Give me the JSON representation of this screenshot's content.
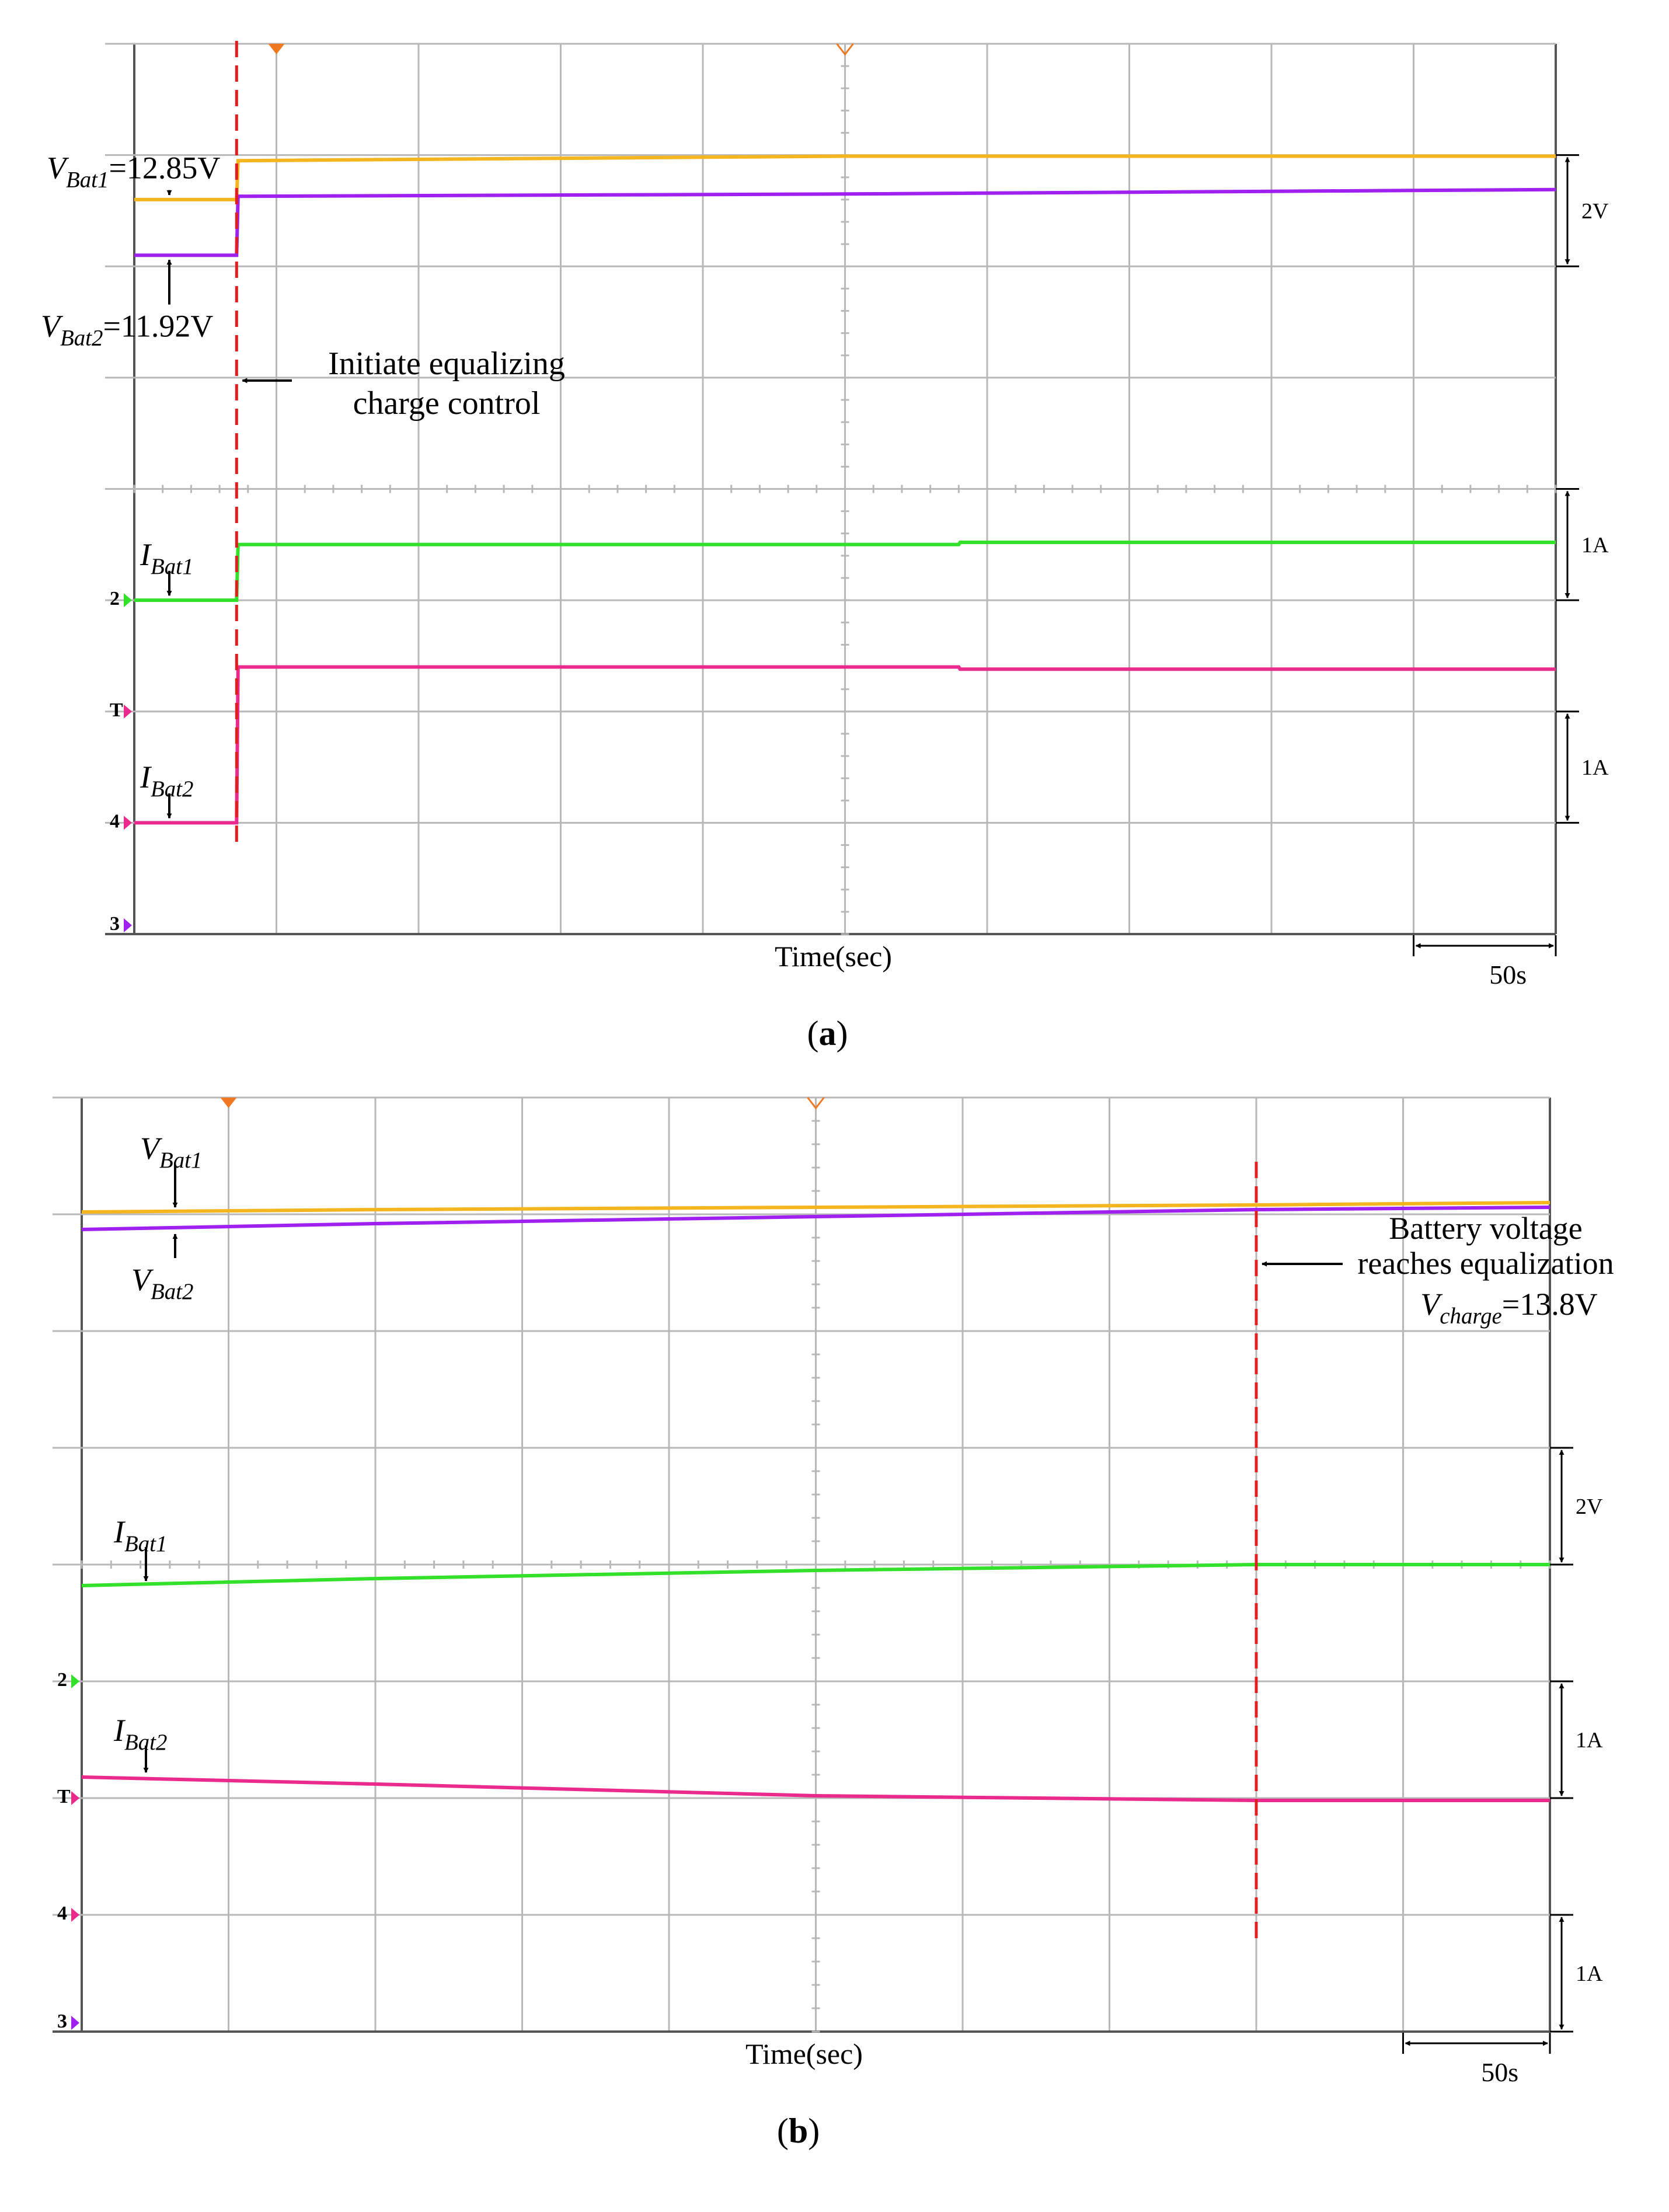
{
  "colors": {
    "vbat1": "#f5b51e",
    "vbat2": "#a020f0",
    "ibat1": "#33e02a",
    "ibat2": "#ea2a8c",
    "marker": "#e02020",
    "grid": "#b8b8b8",
    "trigger": "#f07820"
  },
  "chart_data": [
    {
      "panel_label": "a",
      "type": "line",
      "xlabel": "Time(sec)",
      "time_scale_label": "50s",
      "scale_labels": [
        "2V",
        "1A",
        "1A"
      ],
      "channel_markers": [
        "2",
        "T",
        "4",
        "3"
      ],
      "event_label_line1": "Initiate equalizing",
      "event_label_line2": "charge control",
      "labels": {
        "vbat1_sym": "V",
        "vbat1_sub": "Bat1",
        "vbat1_val": "=12.85V",
        "vbat2_sym": "V",
        "vbat2_sub": "Bat2",
        "vbat2_val": "=11.92V",
        "ibat1_sym": "I",
        "ibat1_sub": "Bat1",
        "ibat2_sym": "I",
        "ibat2_sub": "Bat2"
      },
      "x_divisions": 10,
      "y_divisions": 8,
      "event_time_div": 0.72,
      "series": [
        {
          "key": "vbat1",
          "x_div": [
            0,
            0.72,
            0.73,
            5,
            10
          ],
          "y_div": [
            6.6,
            6.6,
            6.95,
            6.99,
            6.99
          ]
        },
        {
          "key": "vbat2",
          "x_div": [
            0,
            0.72,
            0.73,
            5,
            10
          ],
          "y_div": [
            6.1,
            6.1,
            6.63,
            6.65,
            6.69
          ]
        },
        {
          "key": "ibat1",
          "x_div": [
            0,
            0.72,
            0.73,
            5.8,
            5.81,
            10
          ],
          "y_div": [
            3.0,
            3.0,
            3.5,
            3.5,
            3.52,
            3.52
          ]
        },
        {
          "key": "ibat2",
          "x_div": [
            0,
            0.72,
            0.73,
            5.8,
            5.81,
            10
          ],
          "y_div": [
            1.0,
            1.0,
            2.4,
            2.4,
            2.38,
            2.38
          ]
        }
      ]
    },
    {
      "panel_label": "b",
      "type": "line",
      "xlabel": "Time(sec)",
      "time_scale_label": "50s",
      "scale_labels": [
        "2V",
        "1A",
        "1A"
      ],
      "channel_markers": [
        "2",
        "T",
        "4",
        "3"
      ],
      "event_label_line1": "Battery voltage",
      "event_label_line2": "reaches equalization",
      "event_label_line3_sym": "V",
      "event_label_line3_sub": "charge",
      "event_label_line3_val": "=13.8V",
      "labels": {
        "vbat1_sym": "V",
        "vbat1_sub": "Bat1",
        "vbat2_sym": "V",
        "vbat2_sub": "Bat2",
        "ibat1_sym": "I",
        "ibat1_sub": "Bat1",
        "ibat2_sym": "I",
        "ibat2_sub": "Bat2"
      },
      "x_divisions": 10,
      "y_divisions": 8,
      "event_time_div": 8.0,
      "series": [
        {
          "key": "vbat1",
          "x_div": [
            0,
            2,
            5,
            8,
            10
          ],
          "y_div": [
            7.02,
            7.04,
            7.06,
            7.08,
            7.1
          ]
        },
        {
          "key": "vbat2",
          "x_div": [
            0,
            2,
            5,
            8,
            10
          ],
          "y_div": [
            6.87,
            6.92,
            6.98,
            7.04,
            7.06
          ]
        },
        {
          "key": "ibat1",
          "x_div": [
            0,
            2,
            5,
            8,
            10
          ],
          "y_div": [
            3.82,
            3.88,
            3.95,
            4.0,
            4.0
          ]
        },
        {
          "key": "ibat2",
          "x_div": [
            0,
            2,
            5,
            8,
            10
          ],
          "y_div": [
            2.18,
            2.12,
            2.02,
            1.98,
            1.98
          ]
        }
      ]
    }
  ]
}
